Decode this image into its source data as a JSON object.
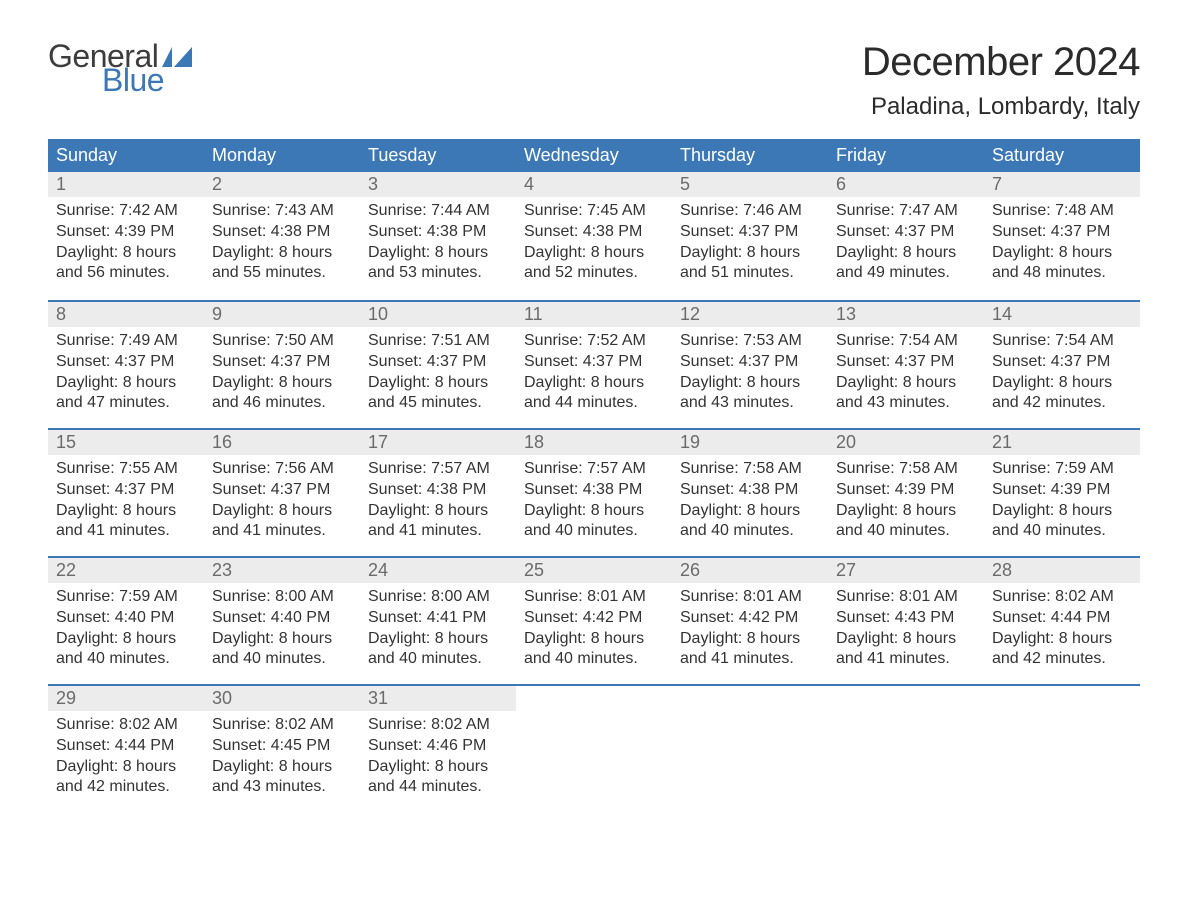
{
  "brand": {
    "word1": "General",
    "word2": "Blue",
    "flag_color": "#3b78b5",
    "text_color": "#3d3d3d"
  },
  "title": "December 2024",
  "location": "Paladina, Lombardy, Italy",
  "colors": {
    "header_bg": "#3b78b5",
    "header_text": "#ffffff",
    "row_divider": "#3b78b5",
    "daynum_bg": "#ececec",
    "daynum_text": "#6b6b6b",
    "body_text": "#333333",
    "page_bg": "#ffffff"
  },
  "typography": {
    "title_fontsize": 40,
    "location_fontsize": 24,
    "dow_fontsize": 18,
    "body_fontsize": 16
  },
  "days_of_week": [
    "Sunday",
    "Monday",
    "Tuesday",
    "Wednesday",
    "Thursday",
    "Friday",
    "Saturday"
  ],
  "labels": {
    "sunrise": "Sunrise:",
    "sunset": "Sunset:",
    "daylight": "Daylight:"
  },
  "weeks": [
    [
      {
        "n": "1",
        "sunrise": "7:42 AM",
        "sunset": "4:39 PM",
        "day_l1": "8 hours",
        "day_l2": "and 56 minutes."
      },
      {
        "n": "2",
        "sunrise": "7:43 AM",
        "sunset": "4:38 PM",
        "day_l1": "8 hours",
        "day_l2": "and 55 minutes."
      },
      {
        "n": "3",
        "sunrise": "7:44 AM",
        "sunset": "4:38 PM",
        "day_l1": "8 hours",
        "day_l2": "and 53 minutes."
      },
      {
        "n": "4",
        "sunrise": "7:45 AM",
        "sunset": "4:38 PM",
        "day_l1": "8 hours",
        "day_l2": "and 52 minutes."
      },
      {
        "n": "5",
        "sunrise": "7:46 AM",
        "sunset": "4:37 PM",
        "day_l1": "8 hours",
        "day_l2": "and 51 minutes."
      },
      {
        "n": "6",
        "sunrise": "7:47 AM",
        "sunset": "4:37 PM",
        "day_l1": "8 hours",
        "day_l2": "and 49 minutes."
      },
      {
        "n": "7",
        "sunrise": "7:48 AM",
        "sunset": "4:37 PM",
        "day_l1": "8 hours",
        "day_l2": "and 48 minutes."
      }
    ],
    [
      {
        "n": "8",
        "sunrise": "7:49 AM",
        "sunset": "4:37 PM",
        "day_l1": "8 hours",
        "day_l2": "and 47 minutes."
      },
      {
        "n": "9",
        "sunrise": "7:50 AM",
        "sunset": "4:37 PM",
        "day_l1": "8 hours",
        "day_l2": "and 46 minutes."
      },
      {
        "n": "10",
        "sunrise": "7:51 AM",
        "sunset": "4:37 PM",
        "day_l1": "8 hours",
        "day_l2": "and 45 minutes."
      },
      {
        "n": "11",
        "sunrise": "7:52 AM",
        "sunset": "4:37 PM",
        "day_l1": "8 hours",
        "day_l2": "and 44 minutes."
      },
      {
        "n": "12",
        "sunrise": "7:53 AM",
        "sunset": "4:37 PM",
        "day_l1": "8 hours",
        "day_l2": "and 43 minutes."
      },
      {
        "n": "13",
        "sunrise": "7:54 AM",
        "sunset": "4:37 PM",
        "day_l1": "8 hours",
        "day_l2": "and 43 minutes."
      },
      {
        "n": "14",
        "sunrise": "7:54 AM",
        "sunset": "4:37 PM",
        "day_l1": "8 hours",
        "day_l2": "and 42 minutes."
      }
    ],
    [
      {
        "n": "15",
        "sunrise": "7:55 AM",
        "sunset": "4:37 PM",
        "day_l1": "8 hours",
        "day_l2": "and 41 minutes."
      },
      {
        "n": "16",
        "sunrise": "7:56 AM",
        "sunset": "4:37 PM",
        "day_l1": "8 hours",
        "day_l2": "and 41 minutes."
      },
      {
        "n": "17",
        "sunrise": "7:57 AM",
        "sunset": "4:38 PM",
        "day_l1": "8 hours",
        "day_l2": "and 41 minutes."
      },
      {
        "n": "18",
        "sunrise": "7:57 AM",
        "sunset": "4:38 PM",
        "day_l1": "8 hours",
        "day_l2": "and 40 minutes."
      },
      {
        "n": "19",
        "sunrise": "7:58 AM",
        "sunset": "4:38 PM",
        "day_l1": "8 hours",
        "day_l2": "and 40 minutes."
      },
      {
        "n": "20",
        "sunrise": "7:58 AM",
        "sunset": "4:39 PM",
        "day_l1": "8 hours",
        "day_l2": "and 40 minutes."
      },
      {
        "n": "21",
        "sunrise": "7:59 AM",
        "sunset": "4:39 PM",
        "day_l1": "8 hours",
        "day_l2": "and 40 minutes."
      }
    ],
    [
      {
        "n": "22",
        "sunrise": "7:59 AM",
        "sunset": "4:40 PM",
        "day_l1": "8 hours",
        "day_l2": "and 40 minutes."
      },
      {
        "n": "23",
        "sunrise": "8:00 AM",
        "sunset": "4:40 PM",
        "day_l1": "8 hours",
        "day_l2": "and 40 minutes."
      },
      {
        "n": "24",
        "sunrise": "8:00 AM",
        "sunset": "4:41 PM",
        "day_l1": "8 hours",
        "day_l2": "and 40 minutes."
      },
      {
        "n": "25",
        "sunrise": "8:01 AM",
        "sunset": "4:42 PM",
        "day_l1": "8 hours",
        "day_l2": "and 40 minutes."
      },
      {
        "n": "26",
        "sunrise": "8:01 AM",
        "sunset": "4:42 PM",
        "day_l1": "8 hours",
        "day_l2": "and 41 minutes."
      },
      {
        "n": "27",
        "sunrise": "8:01 AM",
        "sunset": "4:43 PM",
        "day_l1": "8 hours",
        "day_l2": "and 41 minutes."
      },
      {
        "n": "28",
        "sunrise": "8:02 AM",
        "sunset": "4:44 PM",
        "day_l1": "8 hours",
        "day_l2": "and 42 minutes."
      }
    ],
    [
      {
        "n": "29",
        "sunrise": "8:02 AM",
        "sunset": "4:44 PM",
        "day_l1": "8 hours",
        "day_l2": "and 42 minutes."
      },
      {
        "n": "30",
        "sunrise": "8:02 AM",
        "sunset": "4:45 PM",
        "day_l1": "8 hours",
        "day_l2": "and 43 minutes."
      },
      {
        "n": "31",
        "sunrise": "8:02 AM",
        "sunset": "4:46 PM",
        "day_l1": "8 hours",
        "day_l2": "and 44 minutes."
      },
      {
        "empty": true
      },
      {
        "empty": true
      },
      {
        "empty": true
      },
      {
        "empty": true
      }
    ]
  ]
}
